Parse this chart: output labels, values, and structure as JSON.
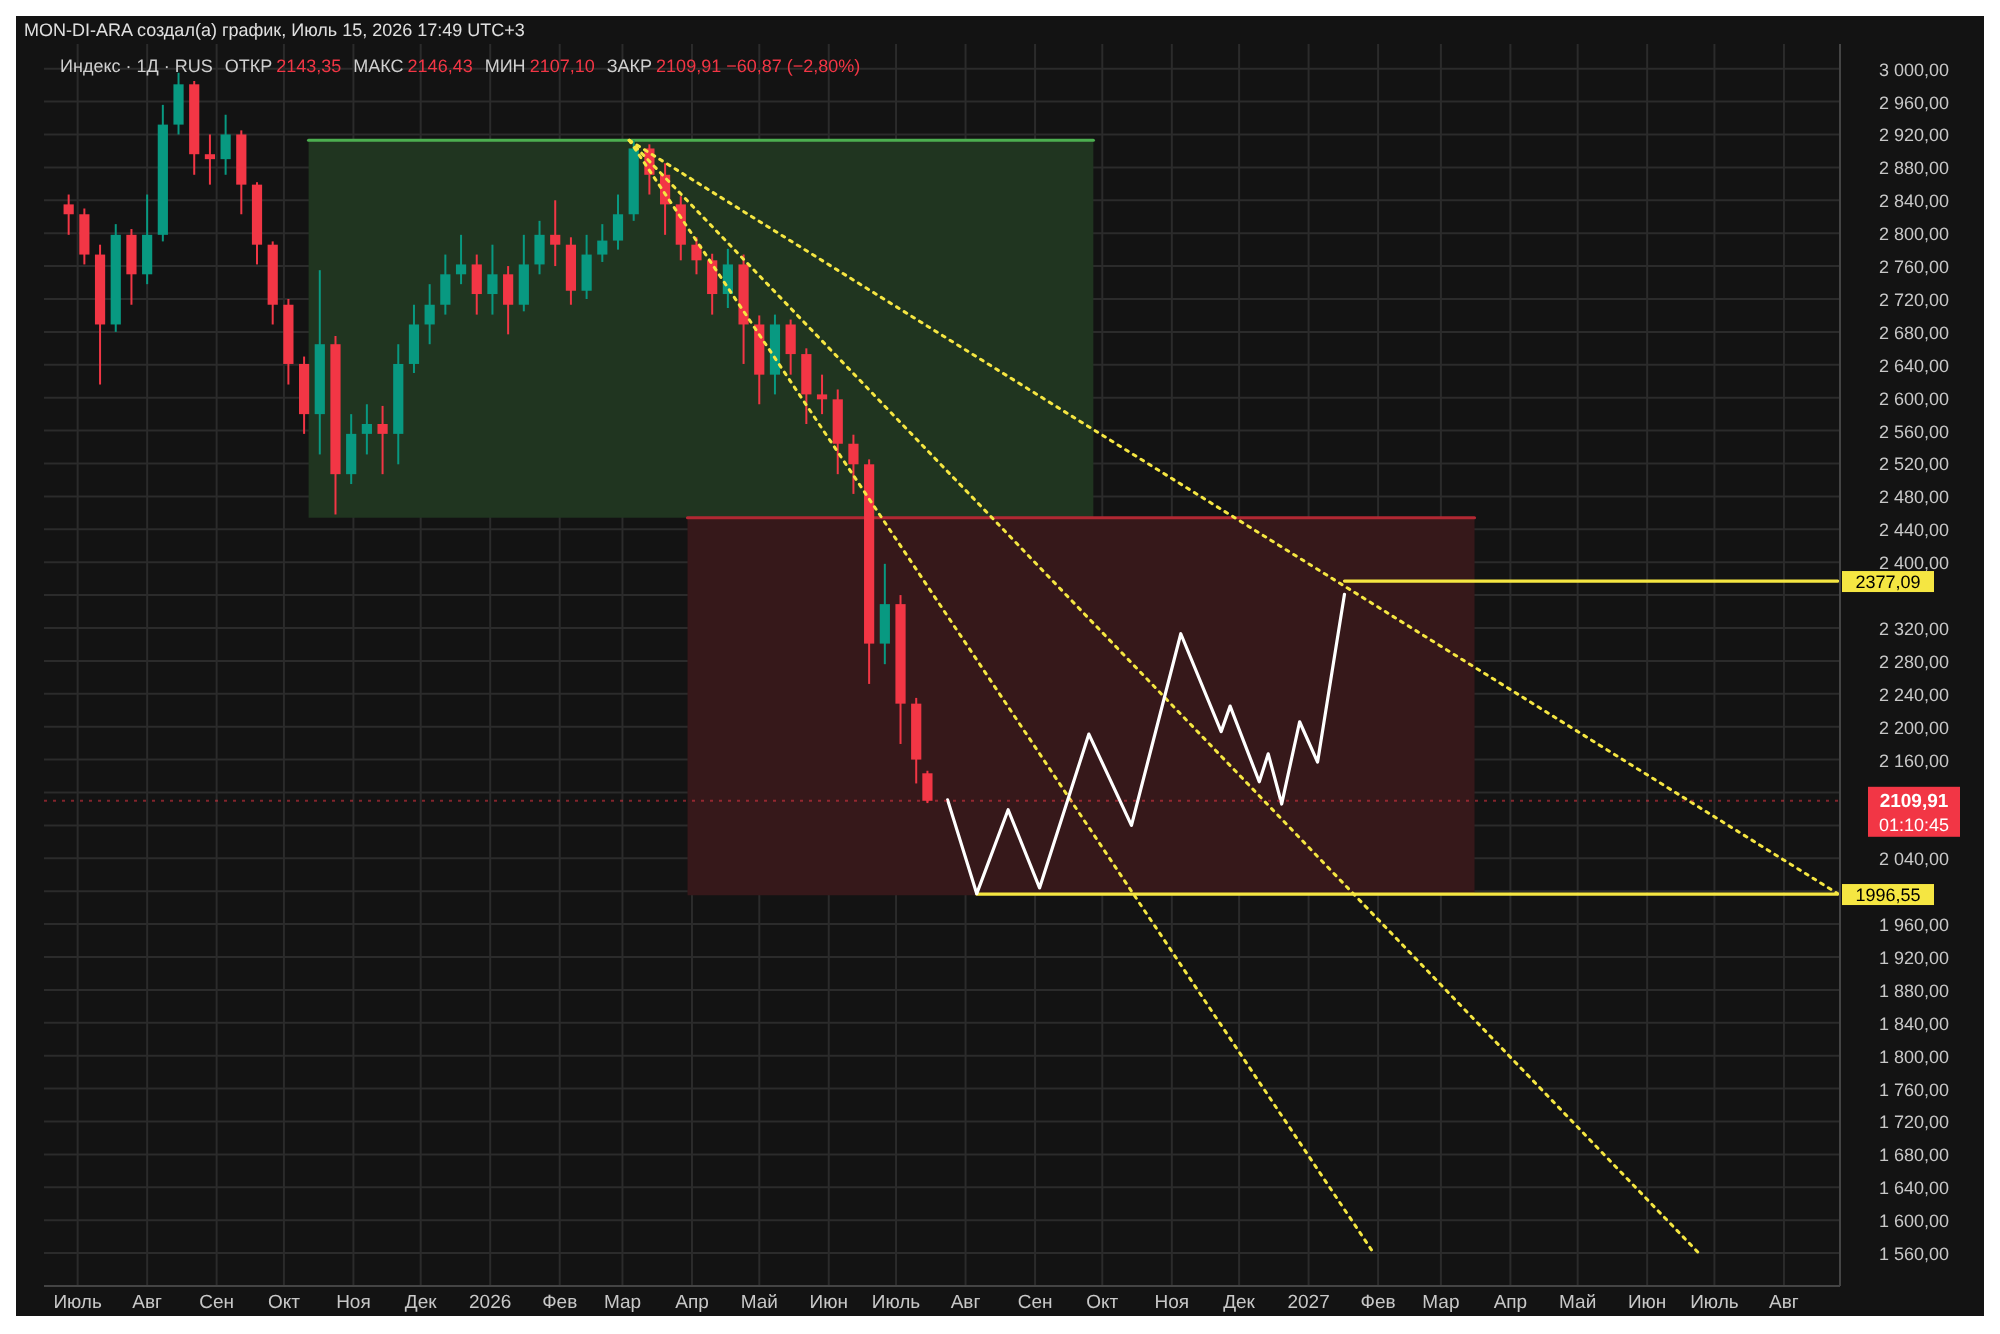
{
  "chart_data": {
    "type": "candlestick",
    "title": "MON-DI-ARA создал(а) график, Июль 15, 2026 17:49 UTC+3",
    "subtitle": "Индекс · 1Д · RUS",
    "x": [
      "2025-06-27",
      "2025-07-04",
      "2025-07-11",
      "2025-07-18",
      "2025-07-25",
      "2025-08-01",
      "2025-08-08",
      "2025-08-15",
      "2025-08-22",
      "2025-08-29",
      "2025-09-05",
      "2025-09-12",
      "2025-09-19",
      "2025-09-26",
      "2025-10-03",
      "2025-10-10",
      "2025-10-17",
      "2025-10-24",
      "2025-10-31",
      "2025-11-07",
      "2025-11-14",
      "2025-11-21",
      "2025-11-28",
      "2025-12-05",
      "2025-12-12",
      "2025-12-19",
      "2025-12-26",
      "2026-01-02",
      "2026-01-09",
      "2026-01-16",
      "2026-01-23",
      "2026-01-30",
      "2026-02-06",
      "2026-02-13",
      "2026-02-20",
      "2026-02-27",
      "2026-03-06",
      "2026-03-13",
      "2026-03-20",
      "2026-03-27",
      "2026-04-03",
      "2026-04-10",
      "2026-04-17",
      "2026-04-24",
      "2026-05-01",
      "2026-05-08",
      "2026-05-15",
      "2026-05-22",
      "2026-05-29",
      "2026-06-05",
      "2026-06-12",
      "2026-06-19",
      "2026-06-26",
      "2026-07-03",
      "2026-07-10",
      "2026-07-15"
    ],
    "ohlc": [
      [
        2835,
        2847,
        2798,
        2823
      ],
      [
        2823,
        2830,
        2762,
        2774
      ],
      [
        2774,
        2786,
        2616,
        2689
      ],
      [
        2689,
        2811,
        2680,
        2798
      ],
      [
        2798,
        2805,
        2713,
        2750
      ],
      [
        2750,
        2847,
        2738,
        2798
      ],
      [
        2798,
        2956,
        2790,
        2932
      ],
      [
        2932,
        2995,
        2920,
        2981
      ],
      [
        2981,
        2985,
        2871,
        2896
      ],
      [
        2896,
        2920,
        2859,
        2890
      ],
      [
        2890,
        2944,
        2871,
        2920
      ],
      [
        2920,
        2925,
        2823,
        2859
      ],
      [
        2859,
        2862,
        2762,
        2786
      ],
      [
        2786,
        2790,
        2689,
        2713
      ],
      [
        2713,
        2720,
        2616,
        2641
      ],
      [
        2641,
        2650,
        2556,
        2580
      ],
      [
        2580,
        2755,
        2531,
        2665
      ],
      [
        2665,
        2675,
        2458,
        2507
      ],
      [
        2507,
        2580,
        2495,
        2556
      ],
      [
        2556,
        2592,
        2531,
        2568
      ],
      [
        2568,
        2590,
        2507,
        2556
      ],
      [
        2556,
        2665,
        2519,
        2641
      ],
      [
        2641,
        2713,
        2630,
        2689
      ],
      [
        2689,
        2738,
        2665,
        2713
      ],
      [
        2713,
        2774,
        2701,
        2750
      ],
      [
        2750,
        2798,
        2738,
        2762
      ],
      [
        2762,
        2774,
        2701,
        2726
      ],
      [
        2726,
        2786,
        2701,
        2750
      ],
      [
        2750,
        2760,
        2677,
        2713
      ],
      [
        2713,
        2798,
        2705,
        2762
      ],
      [
        2762,
        2815,
        2750,
        2798
      ],
      [
        2798,
        2840,
        2760,
        2786
      ],
      [
        2786,
        2795,
        2713,
        2730
      ],
      [
        2730,
        2798,
        2720,
        2774
      ],
      [
        2774,
        2811,
        2765,
        2791
      ],
      [
        2791,
        2847,
        2780,
        2823
      ],
      [
        2823,
        2913,
        2815,
        2903
      ],
      [
        2903,
        2908,
        2847,
        2871
      ],
      [
        2871,
        2885,
        2798,
        2835
      ],
      [
        2835,
        2845,
        2767,
        2786
      ],
      [
        2786,
        2795,
        2750,
        2767
      ],
      [
        2767,
        2775,
        2701,
        2726
      ],
      [
        2726,
        2781,
        2709,
        2762
      ],
      [
        2762,
        2774,
        2641,
        2689
      ],
      [
        2689,
        2700,
        2592,
        2628
      ],
      [
        2628,
        2701,
        2604,
        2689
      ],
      [
        2689,
        2695,
        2628,
        2653
      ],
      [
        2653,
        2660,
        2568,
        2604
      ],
      [
        2604,
        2628,
        2580,
        2598
      ],
      [
        2598,
        2610,
        2507,
        2544
      ],
      [
        2544,
        2555,
        2483,
        2519
      ],
      [
        2519,
        2525,
        2252,
        2301
      ],
      [
        2301,
        2398,
        2276,
        2349
      ],
      [
        2349,
        2360,
        2179,
        2228
      ],
      [
        2228,
        2235,
        2131,
        2160
      ],
      [
        2143.35,
        2146.43,
        2107.1,
        2109.91
      ]
    ],
    "colors": [
      "#f23645",
      "#f23645",
      "#f23645",
      "#089981",
      "#f23645",
      "#089981",
      "#089981",
      "#089981",
      "#f23645",
      "#f23645",
      "#089981",
      "#f23645",
      "#f23645",
      "#f23645",
      "#f23645",
      "#f23645",
      "#089981",
      "#f23645",
      "#089981",
      "#089981",
      "#f23645",
      "#089981",
      "#089981",
      "#089981",
      "#089981",
      "#089981",
      "#f23645",
      "#089981",
      "#f23645",
      "#089981",
      "#089981",
      "#f23645",
      "#f23645",
      "#089981",
      "#089981",
      "#089981",
      "#089981",
      "#f23645",
      "#f23645",
      "#f23645",
      "#f23645",
      "#f23645",
      "#089981",
      "#f23645",
      "#f23645",
      "#089981",
      "#f23645",
      "#f23645",
      "#f23645",
      "#f23645",
      "#f23645",
      "#f23645",
      "#089981",
      "#f23645",
      "#f23645",
      "#f23645"
    ],
    "series": [
      {
        "type": "line",
        "color": "#4caf50",
        "line_style": "solid",
        "x": [
          "2025-10-12",
          "2026-09-27"
        ],
        "values": [
          2913,
          2913
        ],
        "upper": [
          2913,
          2913
        ],
        "lower": [
          2454,
          2454
        ]
      },
      {
        "type": "line",
        "color": "#b22833",
        "line_style": "solid",
        "x": [
          "2026-03-30",
          "2027-03-16"
        ],
        "values": [
          2454,
          2454
        ],
        "upper": [
          2454,
          2454
        ],
        "lower": [
          1995,
          1995
        ]
      },
      {
        "type": "line",
        "color": "#f5e642",
        "line_style": "dotted",
        "x": [
          "2026-03-04",
          "2027-08-25"
        ],
        "values": [
          2913,
          1997
        ]
      },
      {
        "type": "line",
        "color": "#f5e642",
        "line_style": "dotted",
        "x": [
          "2026-03-04",
          "2027-06-24"
        ],
        "values": [
          2913,
          1560
        ]
      },
      {
        "type": "line",
        "color": "#f5e642",
        "line_style": "dotted",
        "x": [
          "2026-03-04",
          "2027-01-30"
        ],
        "values": [
          2913,
          1560
        ]
      },
      {
        "type": "line",
        "color": "#f5e642",
        "line_style": "solid",
        "x": [
          "2026-08-06",
          "2027-08-25"
        ],
        "values": [
          1996.55,
          1996.55
        ],
        "value_labels": [
          null,
          "1996,55"
        ]
      },
      {
        "type": "line",
        "color": "#f5e642",
        "line_style": "solid",
        "x": [
          "2027-01-17",
          "2027-08-25"
        ],
        "values": [
          2377.09,
          2377.09
        ],
        "value_labels": [
          null,
          "2377,09"
        ]
      },
      {
        "type": "line",
        "color": "#ffffff",
        "line_style": "solid",
        "x": [
          "2026-07-24",
          "2026-08-06",
          "2026-08-20",
          "2026-09-03",
          "2026-09-25",
          "2026-10-14",
          "2026-11-05",
          "2026-11-23",
          "2026-11-27",
          "2026-12-10",
          "2026-12-14",
          "2026-12-20",
          "2026-12-28",
          "2027-01-05",
          "2027-01-17"
        ],
        "values": [
          2111,
          1997,
          2099,
          2004,
          2191,
          2080,
          2313,
          2194,
          2225,
          2133,
          2167,
          2106,
          2206,
          2157,
          2361
        ]
      }
    ],
    "xlim": [
      "2025-06-16",
      "2027-08-26"
    ],
    "xticks": [
      {
        "value": "2025-07-01",
        "label": "Июль"
      },
      {
        "value": "2025-08-01",
        "label": "Авг"
      },
      {
        "value": "2025-09-01",
        "label": "Сен"
      },
      {
        "value": "2025-10-01",
        "label": "Окт"
      },
      {
        "value": "2025-11-01",
        "label": "Ноя"
      },
      {
        "value": "2025-12-01",
        "label": "Дек"
      },
      {
        "value": "2026-01-01",
        "label": "2026"
      },
      {
        "value": "2026-02-01",
        "label": "Фев"
      },
      {
        "value": "2026-03-01",
        "label": "Мар"
      },
      {
        "value": "2026-04-01",
        "label": "Апр"
      },
      {
        "value": "2026-05-01",
        "label": "Май"
      },
      {
        "value": "2026-06-01",
        "label": "Июн"
      },
      {
        "value": "2026-07-01",
        "label": "Июль"
      },
      {
        "value": "2026-08-01",
        "label": "Авг"
      },
      {
        "value": "2026-09-01",
        "label": "Сен"
      },
      {
        "value": "2026-10-01",
        "label": "Окт"
      },
      {
        "value": "2026-11-01",
        "label": "Ноя"
      },
      {
        "value": "2026-12-01",
        "label": "Дек"
      },
      {
        "value": "2027-01-01",
        "label": "2027"
      },
      {
        "value": "2027-02-01",
        "label": "Фев"
      },
      {
        "value": "2027-03-01",
        "label": "Мар"
      },
      {
        "value": "2027-04-01",
        "label": "Апр"
      },
      {
        "value": "2027-05-01",
        "label": "Май"
      },
      {
        "value": "2027-06-01",
        "label": "Июн"
      },
      {
        "value": "2027-07-01",
        "label": "Июль"
      },
      {
        "value": "2027-08-01",
        "label": "Авг"
      }
    ],
    "ylim": [
      1520,
      3030
    ],
    "yticks": [
      {
        "value": 1560,
        "label": "1 560,00"
      },
      {
        "value": 1600,
        "label": "1 600,00"
      },
      {
        "value": 1640,
        "label": "1 640,00"
      },
      {
        "value": 1680,
        "label": "1 680,00"
      },
      {
        "value": 1720,
        "label": "1 720,00"
      },
      {
        "value": 1760,
        "label": "1 760,00"
      },
      {
        "value": 1800,
        "label": "1 800,00"
      },
      {
        "value": 1840,
        "label": "1 840,00"
      },
      {
        "value": 1880,
        "label": "1 880,00"
      },
      {
        "value": 1920,
        "label": "1 920,00"
      },
      {
        "value": 1960,
        "label": "1 960,00"
      },
      {
        "value": 2000,
        "label": null
      },
      {
        "value": 2040,
        "label": "2 040,00"
      },
      {
        "value": 2080,
        "label": null
      },
      {
        "value": 2120,
        "label": null
      },
      {
        "value": 2160,
        "label": "2 160,00"
      },
      {
        "value": 2200,
        "label": "2 200,00"
      },
      {
        "value": 2240,
        "label": "2 240,00"
      },
      {
        "value": 2280,
        "label": "2 280,00"
      },
      {
        "value": 2320,
        "label": "2 320,00"
      },
      {
        "value": 2360,
        "label": null
      },
      {
        "value": 2400,
        "label": "2 400,00"
      },
      {
        "value": 2440,
        "label": "2 440,00"
      },
      {
        "value": 2480,
        "label": "2 480,00"
      },
      {
        "value": 2520,
        "label": "2 520,00"
      },
      {
        "value": 2560,
        "label": "2 560,00"
      },
      {
        "value": 2600,
        "label": "2 600,00"
      },
      {
        "value": 2640,
        "label": "2 640,00"
      },
      {
        "value": 2680,
        "label": "2 680,00"
      },
      {
        "value": 2720,
        "label": "2 720,00"
      },
      {
        "value": 2760,
        "label": "2 760,00"
      },
      {
        "value": 2800,
        "label": "2 800,00"
      },
      {
        "value": 2840,
        "label": "2 840,00"
      },
      {
        "value": 2880,
        "label": "2 880,00"
      },
      {
        "value": 2920,
        "label": "2 920,00"
      },
      {
        "value": 2960,
        "label": "2 960,00"
      },
      {
        "value": 3000,
        "label": "3 000,00"
      }
    ],
    "grid": true,
    "annotations": [
      "ОТКР 2143,35",
      "МАКС 2146,43",
      "МИН 2107,10",
      "ЗАКР 2109,91 −60,87 (−2,80%)",
      "01:10:45"
    ],
    "ref_lines": [
      {
        "axis": "y",
        "value": 2109.91,
        "label": "2109,91",
        "color": "#f23645",
        "line_style": "dotted"
      }
    ]
  }
}
